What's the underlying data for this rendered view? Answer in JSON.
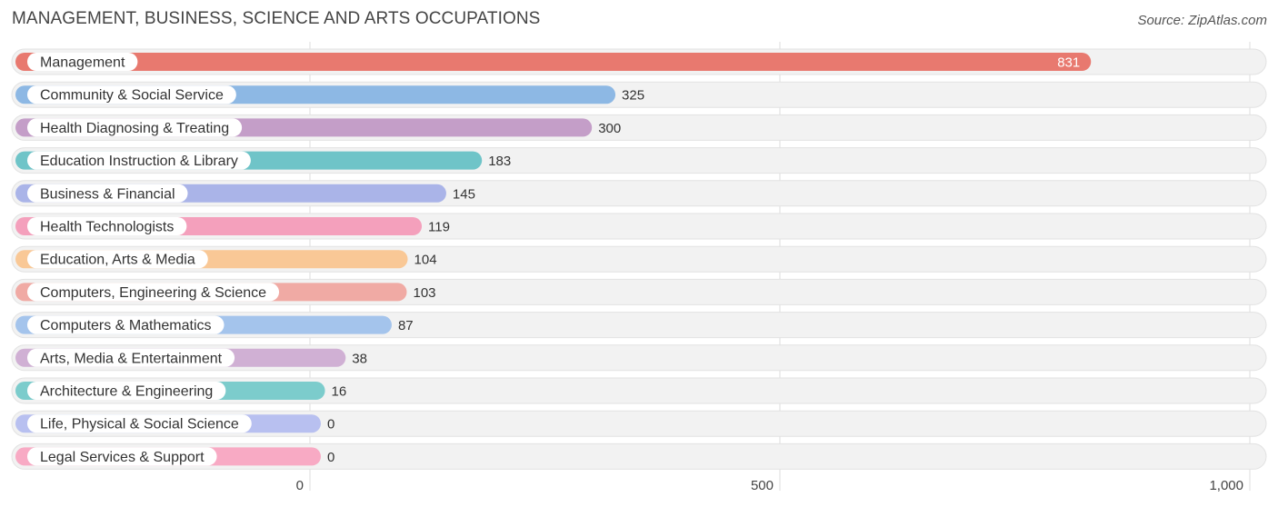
{
  "header": {
    "title": "MANAGEMENT, BUSINESS, SCIENCE AND ARTS OCCUPATIONS",
    "source": "Source: ZipAtlas.com"
  },
  "chart_data": {
    "type": "bar",
    "orientation": "horizontal",
    "title": "MANAGEMENT, BUSINESS, SCIENCE AND ARTS OCCUPATIONS",
    "xlim": [
      0,
      1000
    ],
    "xticks": [
      {
        "value": 0,
        "label": "0"
      },
      {
        "value": 500,
        "label": "500"
      },
      {
        "value": 1000,
        "label": "1,000"
      }
    ],
    "grid": true,
    "categories": [
      "Management",
      "Community & Social Service",
      "Health Diagnosing & Treating",
      "Education Instruction & Library",
      "Business & Financial",
      "Health Technologists",
      "Education, Arts & Media",
      "Computers, Engineering & Science",
      "Computers & Mathematics",
      "Arts, Media & Entertainment",
      "Architecture & Engineering",
      "Life, Physical & Social Science",
      "Legal Services & Support"
    ],
    "values": [
      831,
      325,
      300,
      183,
      145,
      119,
      104,
      103,
      87,
      38,
      16,
      0,
      0
    ],
    "value_labels": [
      "831",
      "325",
      "300",
      "183",
      "145",
      "119",
      "104",
      "103",
      "87",
      "38",
      "16",
      "0",
      "0"
    ],
    "colors": [
      "#e8796f",
      "#8db8e4",
      "#c49ec8",
      "#6fc4c8",
      "#aab4e8",
      "#f4a0bc",
      "#f9c896",
      "#f0aaa4",
      "#a4c4ec",
      "#d0b0d4",
      "#7ccccc",
      "#b8c0f0",
      "#f8aac4"
    ]
  }
}
